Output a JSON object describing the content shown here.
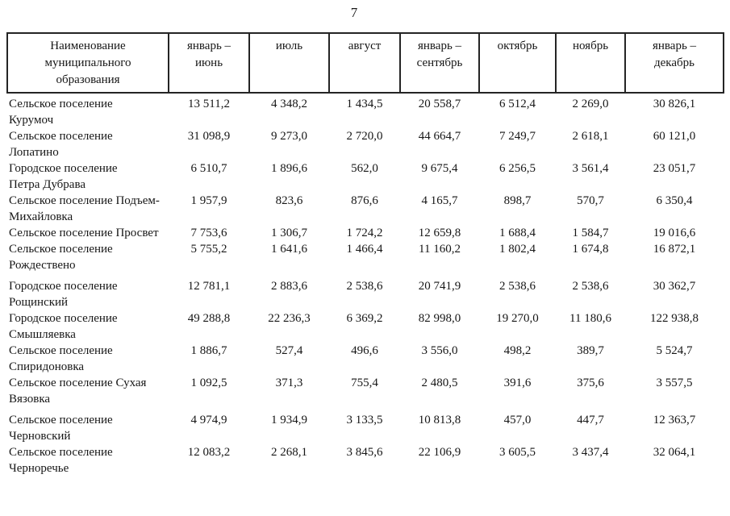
{
  "page": {
    "number": "7"
  },
  "table": {
    "columns": [
      "Наименование\nмуниципального\nобразования",
      "январь –\nиюнь",
      "июль",
      "август",
      "январь –\nсентябрь",
      "октябрь",
      "ноябрь",
      "январь –\nдекабрь"
    ],
    "rows": [
      {
        "name": "Сельское поселение\nКурумоч",
        "values": [
          "13 511,2",
          "4 348,2",
          "1 434,5",
          "20 558,7",
          "6 512,4",
          "2 269,0",
          "30 826,1"
        ]
      },
      {
        "name": "Сельское поселение\nЛопатино",
        "values": [
          "31 098,9",
          "9 273,0",
          "2 720,0",
          "44 664,7",
          "7 249,7",
          "2 618,1",
          "60 121,0"
        ]
      },
      {
        "name": "Городское поселение\nПетра Дубрава",
        "values": [
          "6 510,7",
          "1 896,6",
          "562,0",
          "9 675,4",
          "6 256,5",
          "3 561,4",
          "23 051,7"
        ]
      },
      {
        "name": "Сельское поселение Подъем-\nМихайловка",
        "values": [
          "1 957,9",
          "823,6",
          "876,6",
          "4 165,7",
          "898,7",
          "570,7",
          "6 350,4"
        ]
      },
      {
        "name": "Сельское поселение Просвет",
        "values": [
          "7 753,6",
          "1 306,7",
          "1 724,2",
          "12 659,8",
          "1 688,4",
          "1 584,7",
          "19 016,6"
        ]
      },
      {
        "name": "Сельское поселение\nРождествено",
        "values": [
          "5 755,2",
          "1 641,6",
          "1 466,4",
          "11 160,2",
          "1 802,4",
          "1 674,8",
          "16 872,1"
        ]
      },
      {
        "name": "Городское поселение\nРощинский",
        "values": [
          "12 781,1",
          "2 883,6",
          "2 538,6",
          "20 741,9",
          "2 538,6",
          "2 538,6",
          "30 362,7"
        ]
      },
      {
        "name": "Городское поселение\nСмышляевка",
        "values": [
          "49 288,8",
          "22 236,3",
          "6 369,2",
          "82 998,0",
          "19 270,0",
          "11 180,6",
          "122 938,8"
        ]
      },
      {
        "name": "Сельское поселение\nСпиридоновка",
        "values": [
          "1 886,7",
          "527,4",
          "496,6",
          "3 556,0",
          "498,2",
          "389,7",
          "5 524,7"
        ]
      },
      {
        "name": "Сельское поселение Сухая\nВязовка",
        "values": [
          "1 092,5",
          "371,3",
          "755,4",
          "2 480,5",
          "391,6",
          "375,6",
          "3 557,5"
        ]
      },
      {
        "name": "Сельское поселение\nЧерновский",
        "values": [
          "4 974,9",
          "1 934,9",
          "3 133,5",
          "10 813,8",
          "457,0",
          "447,7",
          "12 363,7"
        ]
      },
      {
        "name": "Сельское поселение\nЧерноречье",
        "values": [
          "12 083,2",
          "2 268,1",
          "3 845,6",
          "22 106,9",
          "3 605,5",
          "3 437,4",
          "32 064,1"
        ]
      }
    ]
  }
}
